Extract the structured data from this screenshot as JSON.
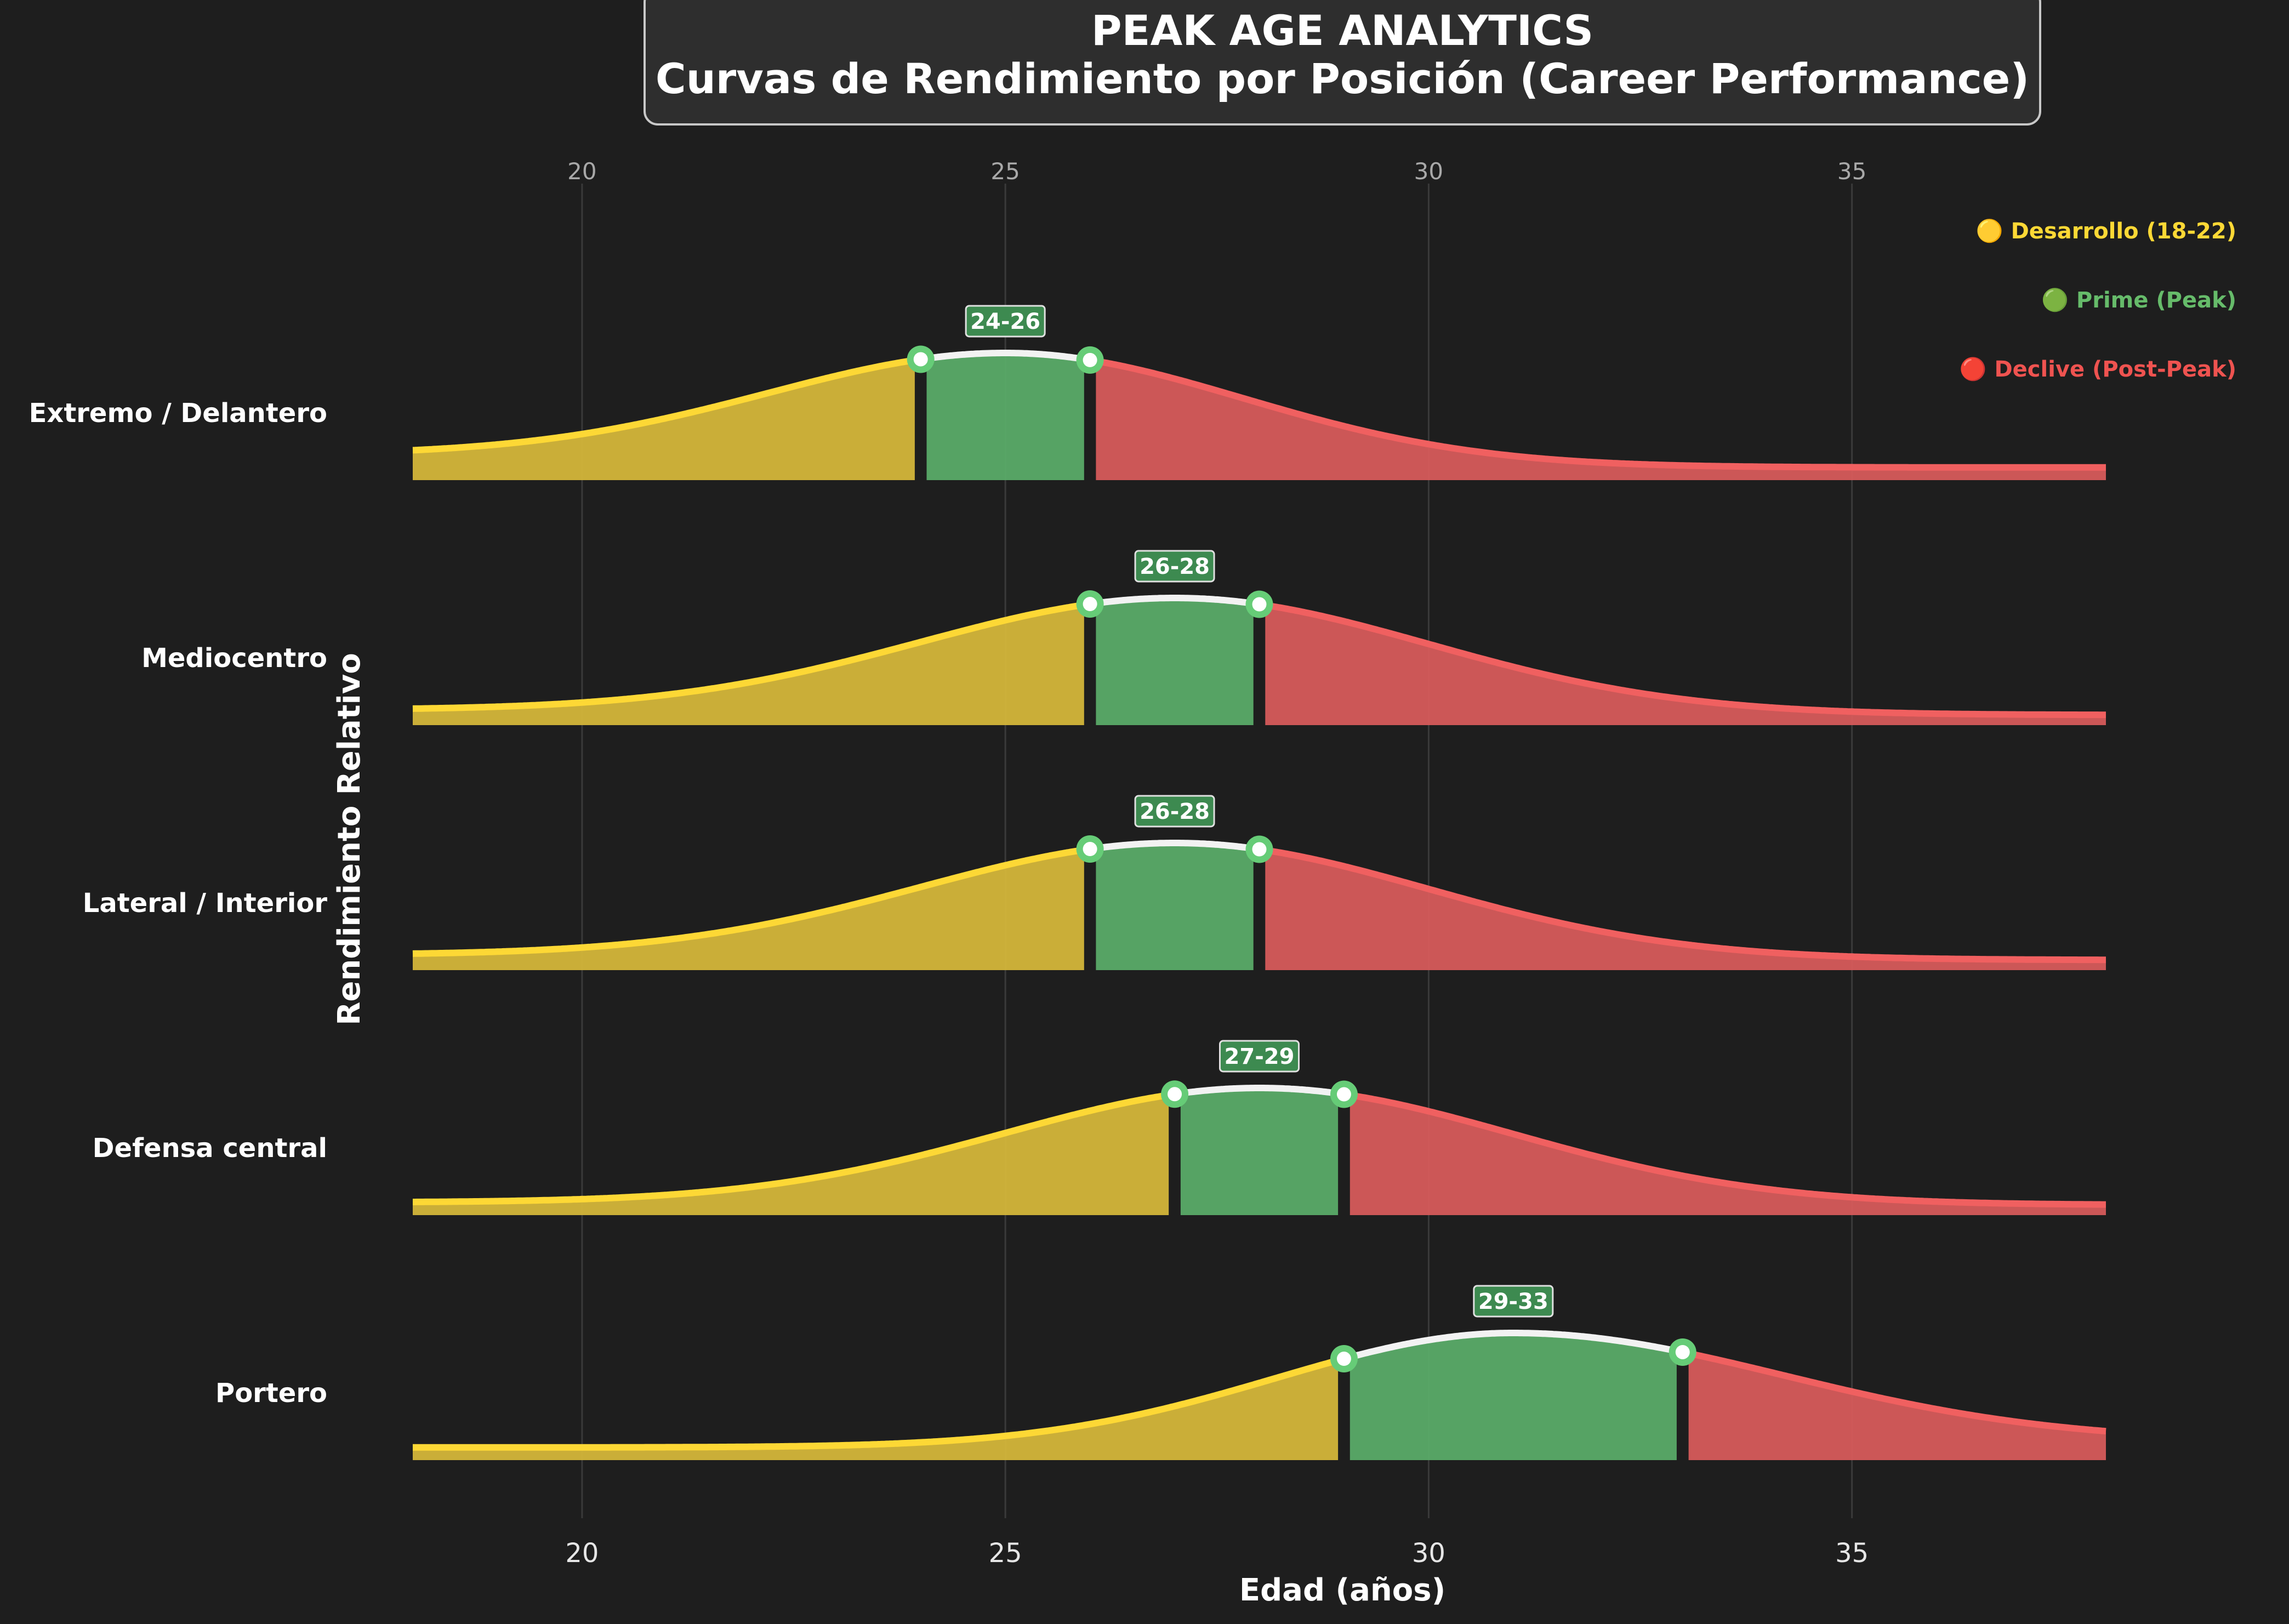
{
  "chart_data": {
    "type": "area",
    "title": "PEAK AGE ANALYTICS",
    "subtitle": "Curvas de Rendimiento por Posición (Career Performance)",
    "xlabel": "Edad (años)",
    "ylabel": "Rendimiento Relativo",
    "xlim": [
      18,
      38
    ],
    "xticks": [
      20,
      25,
      30,
      35
    ],
    "grid": true,
    "legend_position": "top-right",
    "legend": [
      {
        "label": "🟡 Desarrollo (18-22)",
        "color": "#fdd835"
      },
      {
        "label": "🟢 Prime (Peak)",
        "color": "#66bb6a"
      },
      {
        "label": "🔴 Declive (Post-Peak)",
        "color": "#ef5350"
      }
    ],
    "colors": {
      "development_fill": "#d4b63a",
      "development_line": "#fdd835",
      "prime_fill": "#5aab68",
      "prime_line": "#f2f2f2",
      "decline_fill": "#d65b5b",
      "decline_line": "#f06060",
      "marker": "#66cc77",
      "label_box": "#3d8a50"
    },
    "series": [
      {
        "name": "Extremo / Delantero",
        "peak_start": 24,
        "peak_end": 26,
        "peak_label": "24-26",
        "peak_age": 25,
        "sigma_left": 2.8,
        "sigma_right": 2.8,
        "start_value": 0.2,
        "end_value": 0.1
      },
      {
        "name": "Mediocentro",
        "peak_start": 26,
        "peak_end": 28,
        "peak_label": "26-28",
        "peak_age": 27,
        "sigma_left": 3.0,
        "sigma_right": 3.0,
        "start_value": 0.12,
        "end_value": 0.08
      },
      {
        "name": "Lateral / Interior",
        "peak_start": 26,
        "peak_end": 28,
        "peak_label": "26-28",
        "peak_age": 27,
        "sigma_left": 3.0,
        "sigma_right": 3.0,
        "start_value": 0.12,
        "end_value": 0.08
      },
      {
        "name": "Defensa central",
        "peak_start": 27,
        "peak_end": 29,
        "peak_label": "27-29",
        "peak_age": 28,
        "sigma_left": 3.0,
        "sigma_right": 3.0,
        "start_value": 0.1,
        "end_value": 0.08
      },
      {
        "name": "Portero",
        "peak_start": 29,
        "peak_end": 33,
        "peak_label": "29-33",
        "peak_age": 31,
        "sigma_left": 2.8,
        "sigma_right": 3.2,
        "start_value": 0.1,
        "end_value": 0.15
      }
    ]
  }
}
